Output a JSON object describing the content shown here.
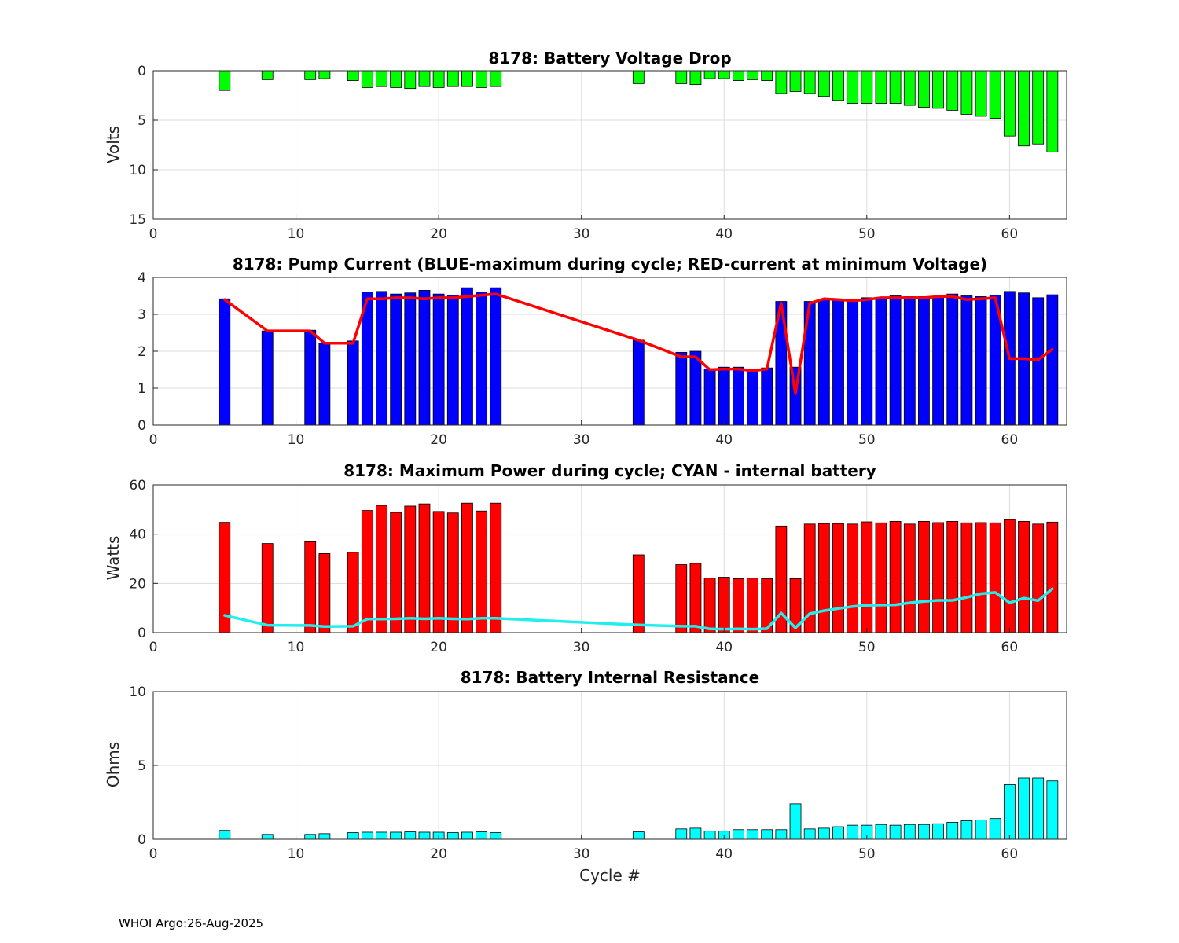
{
  "footer": "WHOI Argo:26-Aug-2025",
  "chart_data": [
    {
      "type": "bar",
      "title": "8178: Battery Voltage Drop",
      "ylabel": "Volts",
      "xlabel": "",
      "xlim": [
        0,
        64
      ],
      "ylim": [
        0,
        15
      ],
      "y_reversed": true,
      "xticks": [
        0,
        10,
        20,
        30,
        40,
        50,
        60
      ],
      "yticks": [
        0,
        5,
        10,
        15
      ],
      "grid": true,
      "bar_color": "#00ff00",
      "x": [
        5,
        8,
        11,
        12,
        14,
        15,
        16,
        17,
        18,
        19,
        20,
        21,
        22,
        23,
        24,
        34,
        37,
        38,
        39,
        40,
        41,
        42,
        43,
        44,
        45,
        46,
        47,
        48,
        49,
        50,
        51,
        52,
        53,
        54,
        55,
        56,
        57,
        58,
        59,
        60,
        61,
        62,
        63
      ],
      "values": [
        2.0,
        0.9,
        0.9,
        0.8,
        1.0,
        1.7,
        1.6,
        1.7,
        1.8,
        1.6,
        1.7,
        1.6,
        1.6,
        1.7,
        1.6,
        1.3,
        1.3,
        1.4,
        0.8,
        0.8,
        1.0,
        0.9,
        1.0,
        2.3,
        2.1,
        2.3,
        2.6,
        3.0,
        3.3,
        3.3,
        3.3,
        3.3,
        3.5,
        3.7,
        3.8,
        4.0,
        4.4,
        4.6,
        4.8,
        6.6,
        7.6,
        7.4,
        8.2
      ]
    },
    {
      "type": "bar",
      "title": "8178: Pump Current (BLUE-maximum during cycle; RED-current at minimum Voltage)",
      "ylabel": "",
      "xlabel": "",
      "xlim": [
        0,
        64
      ],
      "ylim": [
        0,
        4
      ],
      "xticks": [
        0,
        10,
        20,
        30,
        40,
        50,
        60
      ],
      "yticks": [
        0,
        1,
        2,
        3,
        4
      ],
      "grid": true,
      "bar_color": "#0000ff",
      "line_color": "#ff0000",
      "x": [
        5,
        8,
        11,
        12,
        14,
        15,
        16,
        17,
        18,
        19,
        20,
        21,
        22,
        23,
        24,
        34,
        37,
        38,
        39,
        40,
        41,
        42,
        43,
        44,
        45,
        46,
        47,
        48,
        49,
        50,
        51,
        52,
        53,
        54,
        55,
        56,
        57,
        58,
        59,
        60,
        61,
        62,
        63
      ],
      "values": [
        3.42,
        2.55,
        2.57,
        2.22,
        2.28,
        3.6,
        3.62,
        3.55,
        3.58,
        3.65,
        3.55,
        3.52,
        3.72,
        3.6,
        3.72,
        2.3,
        1.97,
        2.0,
        1.52,
        1.57,
        1.57,
        1.52,
        1.55,
        3.35,
        1.57,
        3.35,
        3.4,
        3.4,
        3.4,
        3.45,
        3.45,
        3.5,
        3.48,
        3.48,
        3.48,
        3.55,
        3.5,
        3.48,
        3.52,
        3.62,
        3.58,
        3.45,
        3.53
      ],
      "line_values": [
        3.4,
        2.55,
        2.55,
        2.22,
        2.22,
        3.42,
        3.42,
        3.45,
        3.45,
        3.42,
        3.45,
        3.45,
        3.48,
        3.52,
        3.55,
        2.3,
        1.85,
        1.85,
        1.5,
        1.52,
        1.52,
        1.47,
        1.52,
        3.3,
        0.85,
        3.3,
        3.42,
        3.4,
        3.37,
        3.4,
        3.45,
        3.45,
        3.45,
        3.45,
        3.48,
        3.48,
        3.4,
        3.42,
        3.45,
        1.8,
        1.8,
        1.77,
        2.05
      ]
    },
    {
      "type": "bar",
      "title": "8178: Maximum Power during cycle; CYAN - internal battery",
      "ylabel": "Watts",
      "xlabel": "",
      "xlim": [
        0,
        64
      ],
      "ylim": [
        0,
        60
      ],
      "xticks": [
        0,
        10,
        20,
        30,
        40,
        50,
        60
      ],
      "yticks": [
        0,
        20,
        40,
        60
      ],
      "grid": true,
      "bar_color": "#ff0000",
      "line_color": "#22eeee",
      "x": [
        5,
        8,
        11,
        12,
        14,
        15,
        16,
        17,
        18,
        19,
        20,
        21,
        22,
        23,
        24,
        34,
        37,
        38,
        39,
        40,
        41,
        42,
        43,
        44,
        45,
        46,
        47,
        48,
        49,
        50,
        51,
        52,
        53,
        54,
        55,
        56,
        57,
        58,
        59,
        60,
        61,
        62,
        63
      ],
      "values": [
        44.8,
        36.2,
        36.9,
        32.1,
        32.6,
        49.6,
        51.7,
        48.8,
        51.4,
        52.3,
        49.2,
        48.6,
        52.6,
        49.4,
        52.6,
        31.6,
        27.6,
        28.1,
        22.1,
        22.5,
        21.9,
        22.1,
        21.9,
        43.3,
        21.9,
        44.1,
        44.3,
        44.3,
        44.1,
        45.0,
        44.6,
        45.2,
        44.1,
        45.2,
        44.7,
        45.2,
        44.6,
        44.7,
        44.6,
        45.9,
        45.2,
        44.1,
        44.9
      ],
      "line_values": [
        7.0,
        3.0,
        2.9,
        2.5,
        2.6,
        5.5,
        5.5,
        5.6,
        5.8,
        5.6,
        5.8,
        5.6,
        5.5,
        5.8,
        5.8,
        3.1,
        2.6,
        2.6,
        1.5,
        1.4,
        1.5,
        1.4,
        1.6,
        7.9,
        1.9,
        7.7,
        8.9,
        9.8,
        10.6,
        11.1,
        11.2,
        11.3,
        12.1,
        12.7,
        13.1,
        13.1,
        14.3,
        15.8,
        16.3,
        12.1,
        14.0,
        13.0,
        17.8
      ]
    },
    {
      "type": "bar",
      "title": "8178: Battery Internal Resistance",
      "ylabel": "Ohms",
      "xlabel": "Cycle #",
      "xlim": [
        0,
        64
      ],
      "ylim": [
        0,
        10
      ],
      "xticks": [
        0,
        10,
        20,
        30,
        40,
        50,
        60
      ],
      "yticks": [
        0,
        5,
        10
      ],
      "grid": true,
      "bar_color": "#00ffff",
      "x": [
        5,
        8,
        11,
        12,
        14,
        15,
        16,
        17,
        18,
        19,
        20,
        21,
        22,
        23,
        24,
        34,
        37,
        38,
        39,
        40,
        41,
        42,
        43,
        44,
        45,
        46,
        47,
        48,
        49,
        50,
        51,
        52,
        53,
        54,
        55,
        56,
        57,
        58,
        59,
        60,
        61,
        62,
        63
      ],
      "values": [
        0.6,
        0.33,
        0.33,
        0.38,
        0.45,
        0.48,
        0.48,
        0.48,
        0.5,
        0.48,
        0.48,
        0.45,
        0.48,
        0.5,
        0.45,
        0.5,
        0.7,
        0.75,
        0.55,
        0.55,
        0.65,
        0.65,
        0.65,
        0.65,
        2.4,
        0.7,
        0.75,
        0.85,
        0.95,
        0.95,
        1.0,
        0.95,
        1.0,
        1.0,
        1.05,
        1.15,
        1.25,
        1.3,
        1.4,
        3.7,
        4.15,
        4.15,
        3.95
      ]
    }
  ]
}
